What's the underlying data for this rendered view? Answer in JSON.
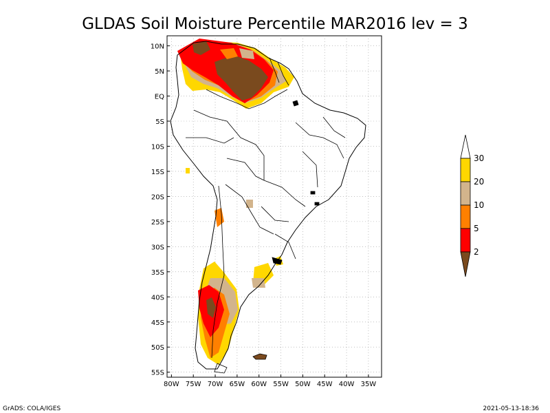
{
  "title": "GLDAS Soil Moisture Percentile MAR2016 lev = 3",
  "footer_left": "GrADS: COLA/IGES",
  "footer_right": "2021-05-13-18:36",
  "map": {
    "projection": "lat-lon",
    "lon_range": [
      -81,
      -32
    ],
    "lat_range": [
      -56,
      12
    ],
    "grid": "dotted",
    "lat_labels": [
      "10N",
      "5N",
      "EQ",
      "5S",
      "10S",
      "15S",
      "20S",
      "25S",
      "30S",
      "35S",
      "40S",
      "45S",
      "50S",
      "55S"
    ],
    "lat_values": [
      10,
      5,
      0,
      -5,
      -10,
      -15,
      -20,
      -25,
      -30,
      -35,
      -40,
      -45,
      -50,
      -55
    ],
    "lon_labels": [
      "80W",
      "75W",
      "70W",
      "65W",
      "60W",
      "55W",
      "50W",
      "45W",
      "40W",
      "35W"
    ],
    "lon_values": [
      -80,
      -75,
      -70,
      -65,
      -60,
      -55,
      -50,
      -45,
      -40,
      -35
    ]
  },
  "colorbar": {
    "labels": [
      "2",
      "5",
      "10",
      "20",
      "30"
    ],
    "colors": [
      "#7a4a1e",
      "#ff0000",
      "#ff8000",
      "#d2b48c",
      "#ffd700",
      "#ffffff"
    ],
    "placement": "right"
  },
  "categories": [
    {
      "name": "<2",
      "color": "#7a4a1e"
    },
    {
      "name": "2-5",
      "color": "#ff0000"
    },
    {
      "name": "5-10",
      "color": "#ff8000"
    },
    {
      "name": "10-20",
      "color": "#d2b48c"
    },
    {
      "name": "20-30",
      "color": "#ffd700"
    }
  ]
}
